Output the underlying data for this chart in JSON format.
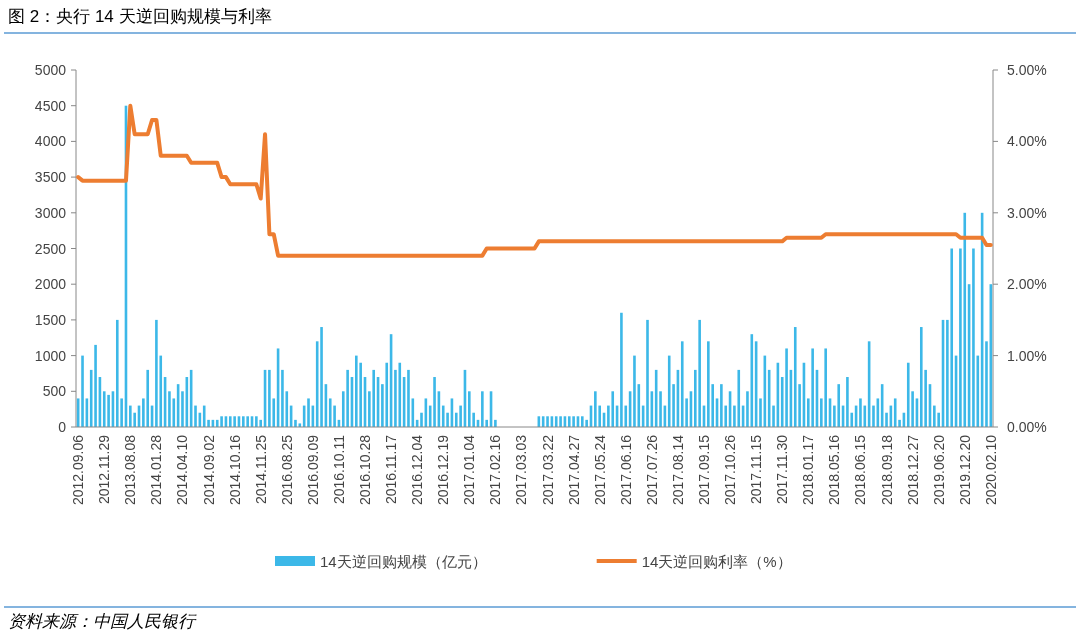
{
  "chart_data": {
    "type": "bar",
    "title": "图 2：央行 14 天逆回购规模与利率",
    "categories": [
      "2012.09.06",
      null,
      null,
      null,
      null,
      null,
      "2012.11.29",
      null,
      null,
      null,
      null,
      null,
      "2013.08.08",
      null,
      null,
      null,
      null,
      null,
      "2014.01.28",
      null,
      null,
      null,
      null,
      null,
      "2014.04.10",
      null,
      null,
      null,
      null,
      null,
      "2014.09.02",
      null,
      null,
      null,
      null,
      null,
      "2014.10.16",
      null,
      null,
      null,
      null,
      null,
      "2014.11.25",
      null,
      null,
      null,
      null,
      null,
      "2016.08.25",
      null,
      null,
      null,
      null,
      null,
      "2016.09.09",
      null,
      null,
      null,
      null,
      null,
      "2016.10.11",
      null,
      null,
      null,
      null,
      null,
      "2016.10.28",
      null,
      null,
      null,
      null,
      null,
      "2016.11.17",
      null,
      null,
      null,
      null,
      null,
      "2016.12.04",
      null,
      null,
      null,
      null,
      null,
      "2016.12.19",
      null,
      null,
      null,
      null,
      null,
      "2017.01.04",
      null,
      null,
      null,
      null,
      null,
      "2017.02.16",
      null,
      null,
      null,
      null,
      null,
      "2017.03.03",
      null,
      null,
      null,
      null,
      null,
      "2017.03.22",
      null,
      null,
      null,
      null,
      null,
      "2017.04.27",
      null,
      null,
      null,
      null,
      null,
      "2017.05.24",
      null,
      null,
      null,
      null,
      null,
      "2017.06.16",
      null,
      null,
      null,
      null,
      null,
      "2017.07.26",
      null,
      null,
      null,
      null,
      null,
      "2017.08.14",
      null,
      null,
      null,
      null,
      null,
      "2017.09.15",
      null,
      null,
      null,
      null,
      null,
      "2017.10.26",
      null,
      null,
      null,
      null,
      null,
      "2017.11.15",
      null,
      null,
      null,
      null,
      null,
      "2017.11.30",
      null,
      null,
      null,
      null,
      null,
      "2018.01.17",
      null,
      null,
      null,
      null,
      null,
      "2018.05.16",
      null,
      null,
      null,
      null,
      null,
      "2018.06.15",
      null,
      null,
      null,
      null,
      null,
      "2018.09.18",
      null,
      null,
      null,
      null,
      null,
      "2018.12.27",
      null,
      null,
      null,
      null,
      null,
      "2019.06.20",
      null,
      null,
      null,
      null,
      null,
      "2019.12.20",
      null,
      null,
      null,
      null,
      null,
      "2020.02.10"
    ],
    "series": [
      {
        "name": "14天逆回购规模（亿元）",
        "color": "#3cb8e8",
        "values": [
          400,
          1000,
          400,
          800,
          1150,
          700,
          500,
          450,
          500,
          1500,
          400,
          4500,
          300,
          200,
          300,
          400,
          800,
          300,
          1500,
          1000,
          700,
          500,
          400,
          600,
          500,
          700,
          800,
          300,
          200,
          300,
          100,
          100,
          100,
          150,
          150,
          150,
          150,
          150,
          150,
          150,
          150,
          150,
          100,
          800,
          800,
          400,
          1100,
          800,
          500,
          300,
          100,
          50,
          300,
          400,
          300,
          1200,
          1400,
          600,
          400,
          300,
          100,
          500,
          800,
          700,
          1000,
          900,
          700,
          500,
          800,
          700,
          600,
          900,
          1300,
          800,
          900,
          700,
          800,
          400,
          100,
          200,
          400,
          300,
          700,
          500,
          300,
          200,
          400,
          200,
          300,
          800,
          500,
          200,
          100,
          500,
          100,
          500,
          100,
          0,
          0,
          0,
          0,
          0,
          0,
          0,
          0,
          0,
          150,
          150,
          150,
          150,
          150,
          150,
          150,
          150,
          150,
          150,
          150,
          100,
          300,
          500,
          300,
          200,
          300,
          500,
          300,
          1600,
          300,
          500,
          1000,
          600,
          300,
          1500,
          500,
          800,
          500,
          300,
          1000,
          600,
          800,
          1200,
          400,
          500,
          800,
          1500,
          300,
          1200,
          600,
          400,
          600,
          300,
          500,
          300,
          800,
          300,
          500,
          1300,
          1200,
          400,
          1000,
          800,
          300,
          900,
          700,
          1100,
          800,
          1400,
          600,
          900,
          400,
          1100,
          800,
          400,
          1100,
          400,
          300,
          600,
          300,
          700,
          200,
          300,
          400,
          300,
          1200,
          300,
          400,
          600,
          200,
          300,
          400,
          100,
          200,
          900,
          500,
          400,
          1400,
          800,
          600,
          300,
          200,
          1500,
          1500,
          2500,
          1000,
          2500,
          3000,
          2000,
          2500,
          1000,
          3000,
          1200,
          2000
        ]
      },
      {
        "name": "14天逆回购利率（%）",
        "type": "line",
        "axis": "y2",
        "color": "#ed7d31",
        "values": [
          3.5,
          3.45,
          3.45,
          3.45,
          3.45,
          3.45,
          3.45,
          3.45,
          3.45,
          3.45,
          3.45,
          3.45,
          4.5,
          4.1,
          4.1,
          4.1,
          4.1,
          4.3,
          4.3,
          3.8,
          3.8,
          3.8,
          3.8,
          3.8,
          3.8,
          3.8,
          3.7,
          3.7,
          3.7,
          3.7,
          3.7,
          3.7,
          3.7,
          3.5,
          3.5,
          3.4,
          3.4,
          3.4,
          3.4,
          3.4,
          3.4,
          3.4,
          3.2,
          4.1,
          2.7,
          2.7,
          2.4,
          2.4,
          2.4,
          2.4,
          2.4,
          2.4,
          2.4,
          2.4,
          2.4,
          2.4,
          2.4,
          2.4,
          2.4,
          2.4,
          2.4,
          2.4,
          2.4,
          2.4,
          2.4,
          2.4,
          2.4,
          2.4,
          2.4,
          2.4,
          2.4,
          2.4,
          2.4,
          2.4,
          2.4,
          2.4,
          2.4,
          2.4,
          2.4,
          2.4,
          2.4,
          2.4,
          2.4,
          2.4,
          2.4,
          2.4,
          2.4,
          2.4,
          2.4,
          2.4,
          2.4,
          2.4,
          2.4,
          2.4,
          2.5,
          2.5,
          2.5,
          2.5,
          2.5,
          2.5,
          2.5,
          2.5,
          2.5,
          2.5,
          2.5,
          2.5,
          2.6,
          2.6,
          2.6,
          2.6,
          2.6,
          2.6,
          2.6,
          2.6,
          2.6,
          2.6,
          2.6,
          2.6,
          2.6,
          2.6,
          2.6,
          2.6,
          2.6,
          2.6,
          2.6,
          2.6,
          2.6,
          2.6,
          2.6,
          2.6,
          2.6,
          2.6,
          2.6,
          2.6,
          2.6,
          2.6,
          2.6,
          2.6,
          2.6,
          2.6,
          2.6,
          2.6,
          2.6,
          2.6,
          2.6,
          2.6,
          2.6,
          2.6,
          2.6,
          2.6,
          2.6,
          2.6,
          2.6,
          2.6,
          2.6,
          2.6,
          2.6,
          2.6,
          2.6,
          2.6,
          2.6,
          2.6,
          2.6,
          2.65,
          2.65,
          2.65,
          2.65,
          2.65,
          2.65,
          2.65,
          2.65,
          2.65,
          2.7,
          2.7,
          2.7,
          2.7,
          2.7,
          2.7,
          2.7,
          2.7,
          2.7,
          2.7,
          2.7,
          2.7,
          2.7,
          2.7,
          2.7,
          2.7,
          2.7,
          2.7,
          2.7,
          2.7,
          2.7,
          2.7,
          2.7,
          2.7,
          2.7,
          2.7,
          2.7,
          2.7,
          2.7,
          2.7,
          2.7,
          2.65,
          2.65,
          2.65,
          2.65,
          2.65,
          2.65,
          2.55,
          2.55
        ]
      }
    ],
    "ylim": [
      0,
      5000
    ],
    "yticks": [
      0,
      500,
      1000,
      1500,
      2000,
      2500,
      3000,
      3500,
      4000,
      4500,
      5000
    ],
    "y2lim": [
      0,
      5
    ],
    "y2ticks": [
      {
        "value": 0,
        "label": "0.00%"
      },
      {
        "value": 1,
        "label": "1.00%"
      },
      {
        "value": 2,
        "label": "2.00%"
      },
      {
        "value": 3,
        "label": "3.00%"
      },
      {
        "value": 4,
        "label": "4.00%"
      },
      {
        "value": 5,
        "label": "5.00%"
      }
    ],
    "legend": "bottom",
    "grid": false,
    "marker": "none",
    "line_style": "solid",
    "annotations": [
      "资料来源：中国人民银行"
    ]
  }
}
